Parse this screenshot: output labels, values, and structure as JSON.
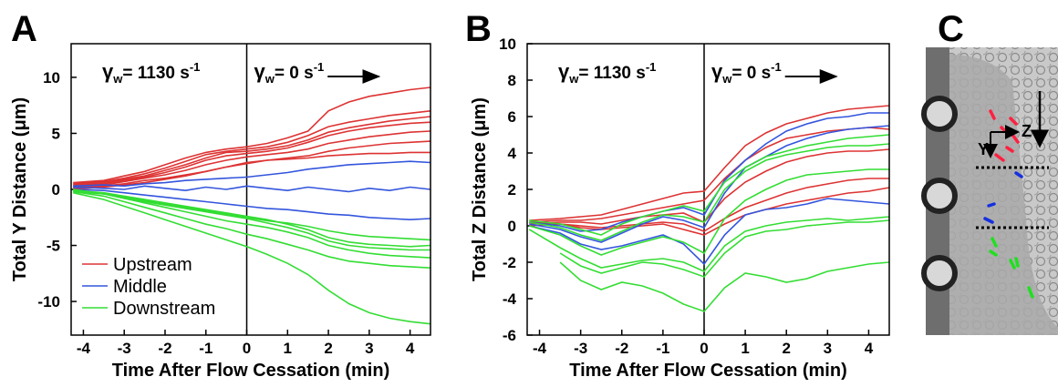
{
  "chart_data": [
    {
      "type": "line",
      "panel_label": "A",
      "xlabel": "Time After Flow Cessation (min)",
      "ylabel": "Total Y Distance (μm)",
      "xlim": [
        -4.3,
        4.5
      ],
      "xticks": [
        -4,
        -3,
        -2,
        -1,
        0,
        1,
        2,
        3,
        4
      ],
      "ylim": [
        -13,
        13
      ],
      "yticks": [
        -10,
        -5,
        0,
        5,
        10
      ],
      "vline": 0,
      "legend": "lower left",
      "annotations": [
        {
          "symbol": "γ",
          "sub": "w",
          "text": "= 1130 s",
          "sup": "-1"
        },
        {
          "symbol": "γ",
          "sub": "w",
          "text": "= 0 s",
          "sup": "-1"
        }
      ],
      "x": [
        -4.25,
        -3.5,
        -3,
        -2.5,
        -2,
        -1.5,
        -1,
        -0.5,
        0,
        0.5,
        1,
        1.5,
        2,
        2.5,
        3,
        3.5,
        4,
        4.5
      ],
      "series": [
        {
          "name": "Upstream",
          "color": "#dd3333",
          "values": [
            0.6,
            0.8,
            1.2,
            1.6,
            2.2,
            2.8,
            3.3,
            3.6,
            3.8,
            4.1,
            4.6,
            5.2,
            7,
            7.8,
            8.3,
            8.6,
            8.9,
            9.1
          ]
        },
        {
          "name": "Upstream",
          "color": "#dd3333",
          "values": [
            0.5,
            0.7,
            1.0,
            1.4,
            1.9,
            2.5,
            3.1,
            3.4,
            3.6,
            3.8,
            4.2,
            4.8,
            5.6,
            6.0,
            6.3,
            6.6,
            6.8,
            7.0
          ]
        },
        {
          "name": "Upstream",
          "color": "#dd3333",
          "values": [
            0.4,
            0.6,
            0.9,
            1.2,
            1.7,
            2.2,
            2.8,
            3.3,
            3.4,
            3.6,
            3.9,
            4.4,
            5.1,
            5.5,
            5.8,
            6.1,
            6.3,
            6.5
          ]
        },
        {
          "name": "Upstream",
          "color": "#dd3333",
          "values": [
            0.3,
            0.5,
            0.8,
            1.1,
            1.5,
            2.0,
            2.6,
            3.0,
            3.2,
            3.4,
            3.7,
            4.2,
            4.8,
            5.2,
            5.5,
            5.7,
            5.9,
            6.0
          ]
        },
        {
          "name": "Upstream",
          "color": "#dd3333",
          "values": [
            0.2,
            0.4,
            0.7,
            1.0,
            1.3,
            1.7,
            2.2,
            2.6,
            2.9,
            3.1,
            3.3,
            3.6,
            4.1,
            4.4,
            4.7,
            4.9,
            5.1,
            5.2
          ]
        },
        {
          "name": "Upstream",
          "color": "#dd3333",
          "values": [
            0.1,
            0.3,
            0.5,
            0.8,
            1.0,
            1.3,
            1.6,
            2.0,
            2.3,
            2.6,
            2.8,
            3.0,
            3.4,
            3.7,
            3.9,
            4.1,
            4.2,
            4.3
          ]
        },
        {
          "name": "Upstream",
          "color": "#dd3333",
          "values": [
            0.0,
            0.2,
            0.4,
            0.6,
            0.9,
            1.2,
            1.6,
            2.0,
            2.4,
            2.6,
            2.7,
            2.8,
            3.0,
            3.1,
            3.2,
            3.2,
            3.3,
            3.3
          ]
        },
        {
          "name": "Middle",
          "color": "#3355dd",
          "values": [
            0.3,
            0.4,
            0.3,
            0.5,
            0.6,
            0.8,
            0.9,
            1.0,
            1.1,
            1.3,
            1.5,
            1.8,
            2.0,
            2.2,
            2.3,
            2.4,
            2.5,
            2.4
          ]
        },
        {
          "name": "Middle",
          "color": "#3355dd",
          "values": [
            0.2,
            0.1,
            0.0,
            0.3,
            0.1,
            -0.1,
            0.2,
            0.0,
            0.3,
            0.1,
            -0.1,
            0.2,
            0.0,
            -0.2,
            0.1,
            -0.1,
            0.2,
            0.0
          ]
        },
        {
          "name": "Middle",
          "color": "#3355dd",
          "values": [
            0.0,
            -0.1,
            -0.3,
            -0.5,
            -0.7,
            -0.9,
            -1.1,
            -1.3,
            -1.5,
            -1.7,
            -1.8,
            -2.0,
            -2.2,
            -2.3,
            -2.5,
            -2.6,
            -2.7,
            -2.6
          ]
        },
        {
          "name": "Downstream",
          "color": "#33dd33",
          "values": [
            -0.2,
            -0.4,
            -0.7,
            -1.0,
            -1.3,
            -1.6,
            -1.9,
            -2.2,
            -2.5,
            -2.8,
            -3.0,
            -3.3,
            -3.7,
            -4.0,
            -4.2,
            -4.3,
            -4.4,
            -4.5
          ]
        },
        {
          "name": "Downstream",
          "color": "#33dd33",
          "values": [
            -0.1,
            -0.3,
            -0.6,
            -0.9,
            -1.2,
            -1.5,
            -1.8,
            -2.1,
            -2.4,
            -2.7,
            -3.1,
            -3.6,
            -4.3,
            -4.7,
            -4.9,
            -5.0,
            -5.1,
            -5.0
          ]
        },
        {
          "name": "Downstream",
          "color": "#33dd33",
          "values": [
            0.0,
            -0.4,
            -0.8,
            -1.1,
            -1.4,
            -1.7,
            -2.0,
            -2.3,
            -2.6,
            -3.0,
            -3.4,
            -3.9,
            -4.6,
            -5.0,
            -5.2,
            -5.3,
            -5.4,
            -5.4
          ]
        },
        {
          "name": "Downstream",
          "color": "#33dd33",
          "values": [
            -0.1,
            -0.4,
            -0.8,
            -1.2,
            -1.6,
            -2.0,
            -2.4,
            -2.8,
            -3.1,
            -3.4,
            -3.8,
            -4.3,
            -5.0,
            -5.4,
            -5.7,
            -5.9,
            -6.0,
            -6.1
          ]
        },
        {
          "name": "Downstream",
          "color": "#33dd33",
          "values": [
            -0.2,
            -0.6,
            -1.1,
            -1.6,
            -2.1,
            -2.6,
            -3.1,
            -3.5,
            -4.0,
            -4.4,
            -4.9,
            -5.4,
            -6.0,
            -6.4,
            -6.6,
            -6.8,
            -6.9,
            -7.0
          ]
        },
        {
          "name": "Downstream",
          "color": "#33dd33",
          "values": [
            -0.3,
            -0.9,
            -1.5,
            -2.1,
            -2.7,
            -3.3,
            -3.9,
            -4.5,
            -5.1,
            -5.8,
            -6.6,
            -7.6,
            -9.0,
            -10.2,
            -11.0,
            -11.5,
            -11.8,
            -12.0
          ]
        }
      ]
    },
    {
      "type": "line",
      "panel_label": "B",
      "xlabel": "Time After Flow Cessation (min)",
      "ylabel": "Total Z Distance (μm)",
      "xlim": [
        -4.3,
        4.5
      ],
      "xticks": [
        -4,
        -3,
        -2,
        -1,
        0,
        1,
        2,
        3,
        4
      ],
      "ylim": [
        -6,
        10
      ],
      "yticks": [
        -6,
        -4,
        -2,
        0,
        2,
        4,
        6,
        8,
        10
      ],
      "vline": 0,
      "annotations": [
        {
          "symbol": "γ",
          "sub": "w",
          "text": "= 1130 s",
          "sup": "-1"
        },
        {
          "symbol": "γ",
          "sub": "w",
          "text": "= 0 s",
          "sup": "-1"
        }
      ],
      "x": [
        -4.25,
        -3.5,
        -3,
        -2.5,
        -2,
        -1.5,
        -1,
        -0.5,
        0,
        0.5,
        1,
        1.5,
        2,
        2.5,
        3,
        3.5,
        4,
        4.5
      ],
      "series": [
        {
          "name": "Upstream",
          "color": "#dd3333",
          "values": [
            0.3,
            0.4,
            0.5,
            0.6,
            0.9,
            1.2,
            1.5,
            1.8,
            1.9,
            3.2,
            4.4,
            5.1,
            5.6,
            5.9,
            6.2,
            6.4,
            6.5,
            6.6
          ]
        },
        {
          "name": "Upstream",
          "color": "#dd3333",
          "values": [
            0.2,
            0.3,
            0.3,
            0.4,
            0.6,
            0.8,
            1.0,
            1.2,
            1.4,
            2.6,
            3.6,
            4.3,
            4.8,
            5.0,
            5.2,
            5.3,
            5.4,
            5.3
          ]
        },
        {
          "name": "Upstream",
          "color": "#dd3333",
          "values": [
            0.1,
            0.2,
            0.2,
            0.1,
            0.3,
            0.5,
            0.6,
            0.7,
            0.2,
            1.5,
            2.4,
            3.0,
            3.5,
            3.8,
            4.0,
            4.1,
            4.1,
            4.2
          ]
        },
        {
          "name": "Upstream",
          "color": "#dd3333",
          "values": [
            0.2,
            0.1,
            0.0,
            -0.1,
            0.0,
            0.1,
            0.2,
            0.1,
            -0.3,
            0.4,
            1.0,
            1.4,
            1.8,
            2.1,
            2.3,
            2.5,
            2.6,
            2.6
          ]
        },
        {
          "name": "Upstream",
          "color": "#dd3333",
          "values": [
            0.0,
            0.1,
            -0.1,
            -0.2,
            -0.1,
            0.0,
            0.1,
            -0.2,
            -0.5,
            0.1,
            0.6,
            0.9,
            1.2,
            1.4,
            1.6,
            1.8,
            1.9,
            2.1
          ]
        },
        {
          "name": "Middle",
          "color": "#3355dd",
          "values": [
            0.2,
            0.0,
            -0.3,
            -0.2,
            0.2,
            0.5,
            0.8,
            1.0,
            0.6,
            2.5,
            3.6,
            4.5,
            5.2,
            5.6,
            5.9,
            6.0,
            6.2,
            6.2
          ]
        },
        {
          "name": "Middle",
          "color": "#3355dd",
          "values": [
            0.1,
            -0.2,
            -0.6,
            -0.9,
            -0.4,
            0.1,
            0.5,
            0.3,
            -0.1,
            1.8,
            3.2,
            3.8,
            4.4,
            4.8,
            5.1,
            5.3,
            5.4,
            5.5
          ]
        },
        {
          "name": "Middle",
          "color": "#3355dd",
          "values": [
            0.0,
            -0.4,
            -1.0,
            -1.3,
            -1.1,
            -0.8,
            -0.5,
            -1.0,
            -2.1,
            -0.5,
            0.6,
            0.9,
            1.0,
            1.2,
            1.5,
            1.4,
            1.3,
            1.2
          ]
        },
        {
          "name": "Downstream",
          "color": "#33dd33",
          "values": [
            0.3,
            0.1,
            -0.2,
            -0.5,
            0.1,
            0.5,
            0.8,
            1.1,
            0.8,
            2.4,
            3.2,
            3.8,
            4.1,
            4.4,
            4.6,
            4.8,
            4.9,
            5.0
          ]
        },
        {
          "name": "Downstream",
          "color": "#33dd33",
          "values": [
            0.2,
            -0.1,
            -0.5,
            -0.8,
            -0.3,
            0.2,
            0.6,
            0.5,
            0.2,
            2.0,
            3.0,
            3.6,
            3.9,
            4.1,
            4.3,
            4.4,
            4.4,
            4.5
          ]
        },
        {
          "name": "Downstream",
          "color": "#33dd33",
          "values": [
            0.0,
            -0.5,
            -1.1,
            -1.6,
            -1.2,
            -0.9,
            -0.6,
            -0.9,
            -1.5,
            0.4,
            1.4,
            2.0,
            2.5,
            2.8,
            2.9,
            3.0,
            3.1,
            3.1
          ]
        },
        {
          "name": "Downstream",
          "color": "#33dd33",
          "values": [
            -0.2,
            -1.2,
            -1.8,
            -2.3,
            -2.1,
            -1.9,
            -1.8,
            -2.0,
            -2.5,
            -1.1,
            -0.3,
            0.0,
            0.2,
            0.3,
            0.4,
            0.3,
            0.4,
            0.5
          ]
        },
        {
          "name": "Downstream",
          "color": "#33dd33",
          "values": [
            null,
            -1.5,
            -2.2,
            -2.6,
            -2.3,
            -2.0,
            -2.1,
            -2.4,
            -2.8,
            -1.5,
            -0.6,
            -0.3,
            -0.2,
            0.0,
            0.1,
            0.2,
            0.2,
            0.3
          ]
        },
        {
          "name": "Downstream",
          "color": "#33dd33",
          "values": [
            null,
            -2.0,
            -3.0,
            -3.5,
            -3.1,
            -3.3,
            -3.7,
            -4.3,
            -4.7,
            -3.4,
            -2.6,
            -2.8,
            -3.1,
            -2.9,
            -2.5,
            -2.3,
            -2.1,
            -2.0
          ]
        }
      ]
    }
  ],
  "panel_c": {
    "panel_label": "C",
    "axis_labels": [
      "Z",
      "Y"
    ]
  }
}
